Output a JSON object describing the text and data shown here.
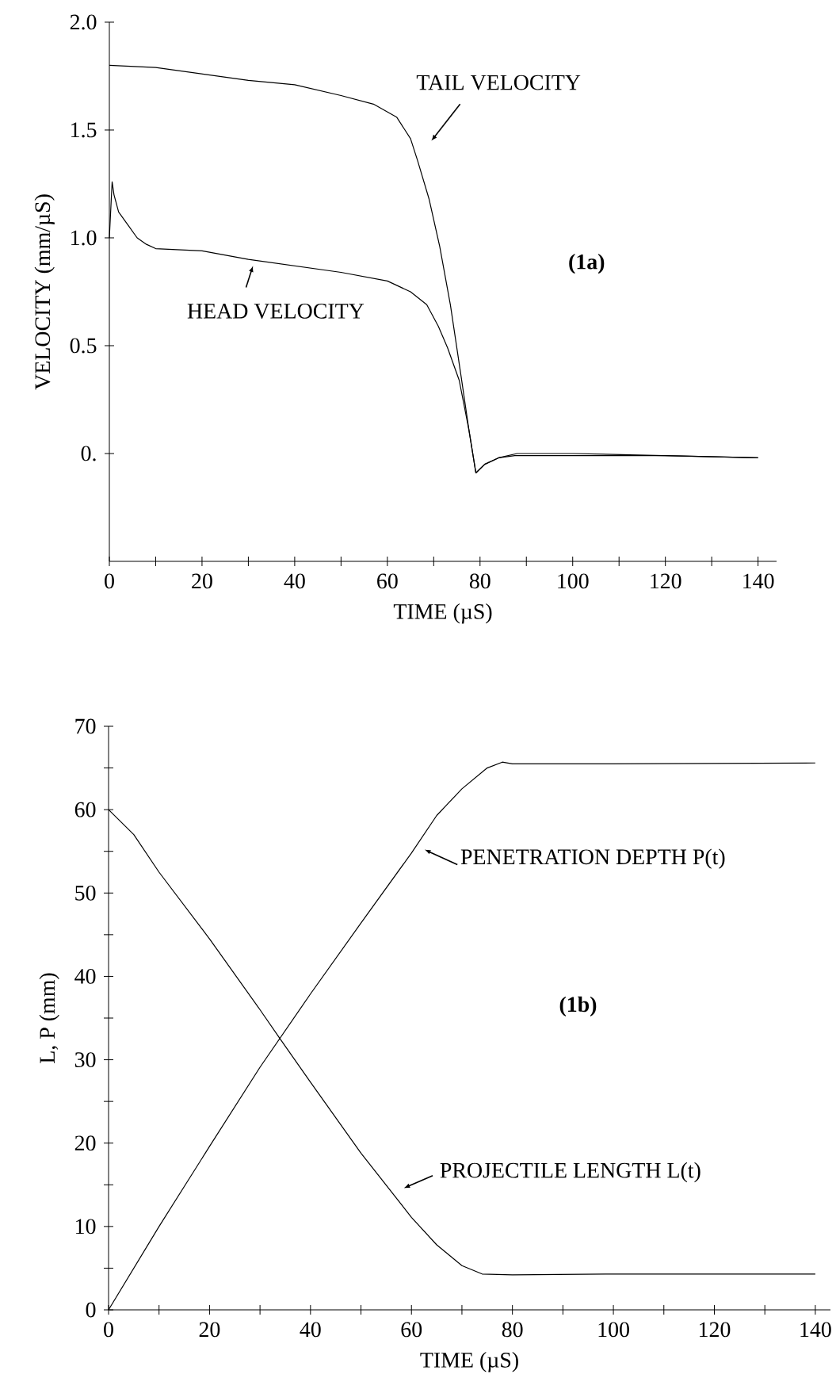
{
  "chart_data": [
    {
      "type": "line",
      "xlabel": "TIME (µS)",
      "ylabel": "VELOCITY (mm/µS)",
      "xlim": [
        0,
        144
      ],
      "ylim": [
        -0.5,
        2.0
      ],
      "xticks": [
        0,
        {
          "value": 10,
          "label": null
        },
        20,
        {
          "value": 30,
          "label": null
        },
        40,
        {
          "value": 50,
          "label": null
        },
        60,
        {
          "value": 70,
          "label": null
        },
        80,
        {
          "value": 90,
          "label": null
        },
        100,
        {
          "value": 110,
          "label": null
        },
        120,
        {
          "value": 130,
          "label": null
        },
        140
      ],
      "yticks": [
        {
          "value": 0,
          "label": "0."
        },
        {
          "value": 0.5,
          "label": "0.5"
        },
        {
          "value": 1,
          "label": "1.0"
        },
        {
          "value": 1.5,
          "label": "1.5"
        },
        {
          "value": 2,
          "label": "2.0"
        }
      ],
      "line_style": "solid",
      "marker": "none",
      "series": [
        {
          "color": "#000000",
          "x": [
            0,
            10,
            20,
            30,
            40,
            50,
            57,
            62,
            65,
            66.5,
            69,
            71.3,
            73.6,
            75.9,
            77.6,
            79.1,
            81,
            84,
            87.5,
            100,
            120,
            140
          ],
          "values": [
            1.8,
            1.79,
            1.76,
            1.73,
            1.71,
            1.66,
            1.62,
            1.56,
            1.46,
            1.36,
            1.18,
            0.96,
            0.69,
            0.36,
            0.11,
            -0.09,
            -0.05,
            -0.02,
            -0.01,
            -0.01,
            -0.01,
            -0.02
          ]
        },
        {
          "color": "#000000",
          "x": [
            0,
            0.6,
            1,
            2,
            4,
            6,
            8,
            10,
            20,
            30,
            40,
            50,
            60,
            65,
            68.5,
            71,
            73,
            75.5,
            77.6,
            79.1,
            81,
            84,
            88,
            100,
            120,
            140
          ],
          "values": [
            1.0,
            1.26,
            1.2,
            1.12,
            1.06,
            1.0,
            0.97,
            0.95,
            0.94,
            0.9,
            0.87,
            0.84,
            0.8,
            0.75,
            0.69,
            0.59,
            0.49,
            0.34,
            0.11,
            -0.09,
            -0.05,
            -0.02,
            0,
            0,
            -0.01,
            -0.02
          ]
        }
      ],
      "annotations": [
        "TAIL VELOCITY",
        "HEAD VELOCITY",
        "**(1a)**"
      ]
    },
    {
      "type": "line",
      "xlabel": "TIME (µS)",
      "ylabel": "L, P (mm)",
      "xlim": [
        0,
        143
      ],
      "ylim": [
        0,
        70
      ],
      "xticks": [
        0,
        {
          "value": 10,
          "label": null
        },
        20,
        {
          "value": 30,
          "label": null
        },
        40,
        {
          "value": 50,
          "label": null
        },
        60,
        {
          "value": 70,
          "label": null
        },
        80,
        {
          "value": 90,
          "label": null
        },
        100,
        {
          "value": 110,
          "label": null
        },
        120,
        {
          "value": 130,
          "label": null
        },
        140
      ],
      "yticks": [
        0,
        {
          "value": 5,
          "label": null
        },
        10,
        {
          "value": 15,
          "label": null
        },
        20,
        {
          "value": 25,
          "label": null
        },
        30,
        {
          "value": 35,
          "label": null
        },
        40,
        {
          "value": 45,
          "label": null
        },
        50,
        {
          "value": 55,
          "label": null
        },
        60,
        {
          "value": 65,
          "label": null
        },
        70
      ],
      "line_style": "solid",
      "marker": "none",
      "series": [
        {
          "color": "#000000",
          "x": [
            0,
            10,
            20,
            30,
            40,
            50,
            60,
            65,
            70,
            75,
            78,
            80,
            100,
            140
          ],
          "values": [
            0,
            10,
            19.6,
            29.1,
            37.9,
            46.4,
            54.8,
            59.3,
            62.5,
            65,
            65.7,
            65.5,
            65.5,
            65.6
          ]
        },
        {
          "color": "#000000",
          "x": [
            0,
            5,
            10,
            20,
            30,
            34,
            40,
            50,
            60,
            65,
            70,
            74,
            80,
            100,
            140
          ],
          "values": [
            60,
            57,
            52.5,
            44.5,
            36,
            32.5,
            27.3,
            18.8,
            11.1,
            7.8,
            5.3,
            4.3,
            4.2,
            4.3,
            4.3
          ]
        }
      ],
      "annotations": [
        "PENETRATION DEPTH P(t)",
        "PROJECTILE LENGTH L(t)",
        "**(1b)**"
      ]
    }
  ]
}
